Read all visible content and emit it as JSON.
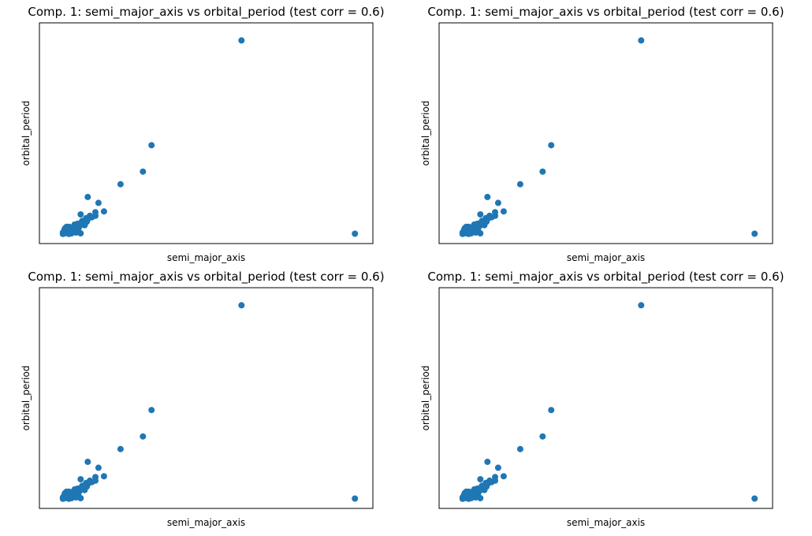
{
  "figure": {
    "background": "#ffffff",
    "marker_color": "#1f77b4"
  },
  "chart_data": [
    {
      "type": "scatter",
      "title": "Comp. 1: semi_major_axis vs orbital_period (test corr = 0.6)",
      "xlabel": "semi_major_axis",
      "ylabel": "orbital_period",
      "xticks": [],
      "yticks": [],
      "xlim": [
        0,
        100
      ],
      "ylim": [
        0,
        100
      ],
      "grid": false,
      "points": [
        {
          "x": 61.5,
          "y": 95.7
        },
        {
          "x": 32.2,
          "y": 44.1
        },
        {
          "x": 29.4,
          "y": 31.1
        },
        {
          "x": 98.5,
          "y": 0.5
        },
        {
          "x": 22.1,
          "y": 24.9
        },
        {
          "x": 11.4,
          "y": 18.6
        },
        {
          "x": 14.9,
          "y": 15.7
        },
        {
          "x": 16.7,
          "y": 11.5
        },
        {
          "x": 13.9,
          "y": 11.1
        },
        {
          "x": 9.1,
          "y": 10.0
        },
        {
          "x": 12.1,
          "y": 9.3
        },
        {
          "x": 13.9,
          "y": 9.3
        },
        {
          "x": 12.8,
          "y": 8.6
        },
        {
          "x": 10.9,
          "y": 8.2
        },
        {
          "x": 11.6,
          "y": 7.9
        },
        {
          "x": 9.6,
          "y": 6.8
        },
        {
          "x": 10.4,
          "y": 6.8
        },
        {
          "x": 11.1,
          "y": 6.4
        },
        {
          "x": 9.1,
          "y": 5.7
        },
        {
          "x": 10.1,
          "y": 5.4
        },
        {
          "x": 8.1,
          "y": 5.4
        },
        {
          "x": 7.1,
          "y": 5.0
        },
        {
          "x": 9.1,
          "y": 4.7
        },
        {
          "x": 10.4,
          "y": 4.7
        },
        {
          "x": 4.5,
          "y": 3.9
        },
        {
          "x": 5.3,
          "y": 3.9
        },
        {
          "x": 6.6,
          "y": 3.9
        },
        {
          "x": 8.6,
          "y": 3.9
        },
        {
          "x": 4.0,
          "y": 3.2
        },
        {
          "x": 5.8,
          "y": 3.2
        },
        {
          "x": 7.3,
          "y": 3.2
        },
        {
          "x": 3.8,
          "y": 2.5
        },
        {
          "x": 4.8,
          "y": 2.5
        },
        {
          "x": 6.3,
          "y": 2.5
        },
        {
          "x": 8.3,
          "y": 2.5
        },
        {
          "x": 3.8,
          "y": 1.8
        },
        {
          "x": 5.1,
          "y": 1.8
        },
        {
          "x": 6.8,
          "y": 1.8
        },
        {
          "x": 3.3,
          "y": 1.1
        },
        {
          "x": 4.3,
          "y": 1.1
        },
        {
          "x": 5.6,
          "y": 1.1
        },
        {
          "x": 7.6,
          "y": 1.1
        },
        {
          "x": 3.8,
          "y": 0.7
        },
        {
          "x": 4.8,
          "y": 0.7
        },
        {
          "x": 6.1,
          "y": 0.7
        },
        {
          "x": 9.1,
          "y": 0.7
        },
        {
          "x": 5.3,
          "y": 0.4
        },
        {
          "x": 3.3,
          "y": 0.4
        }
      ]
    },
    {
      "type": "scatter",
      "title": "Comp. 1: semi_major_axis vs orbital_period (test corr = 0.6)",
      "xlabel": "semi_major_axis",
      "ylabel": "orbital_period",
      "xticks": [],
      "yticks": [],
      "xlim": [
        0,
        100
      ],
      "ylim": [
        0,
        100
      ],
      "grid": false,
      "points": [
        {
          "x": 61.5,
          "y": 95.7
        },
        {
          "x": 32.2,
          "y": 44.1
        },
        {
          "x": 29.4,
          "y": 31.1
        },
        {
          "x": 98.5,
          "y": 0.5
        },
        {
          "x": 22.1,
          "y": 24.9
        },
        {
          "x": 11.4,
          "y": 18.6
        },
        {
          "x": 14.9,
          "y": 15.7
        },
        {
          "x": 16.7,
          "y": 11.5
        },
        {
          "x": 13.9,
          "y": 11.1
        },
        {
          "x": 9.1,
          "y": 10.0
        },
        {
          "x": 12.1,
          "y": 9.3
        },
        {
          "x": 13.9,
          "y": 9.3
        },
        {
          "x": 12.8,
          "y": 8.6
        },
        {
          "x": 10.9,
          "y": 8.2
        },
        {
          "x": 11.6,
          "y": 7.9
        },
        {
          "x": 9.6,
          "y": 6.8
        },
        {
          "x": 10.4,
          "y": 6.8
        },
        {
          "x": 11.1,
          "y": 6.4
        },
        {
          "x": 9.1,
          "y": 5.7
        },
        {
          "x": 10.1,
          "y": 5.4
        },
        {
          "x": 8.1,
          "y": 5.4
        },
        {
          "x": 7.1,
          "y": 5.0
        },
        {
          "x": 9.1,
          "y": 4.7
        },
        {
          "x": 10.4,
          "y": 4.7
        },
        {
          "x": 4.5,
          "y": 3.9
        },
        {
          "x": 5.3,
          "y": 3.9
        },
        {
          "x": 6.6,
          "y": 3.9
        },
        {
          "x": 8.6,
          "y": 3.9
        },
        {
          "x": 4.0,
          "y": 3.2
        },
        {
          "x": 5.8,
          "y": 3.2
        },
        {
          "x": 7.3,
          "y": 3.2
        },
        {
          "x": 3.8,
          "y": 2.5
        },
        {
          "x": 4.8,
          "y": 2.5
        },
        {
          "x": 6.3,
          "y": 2.5
        },
        {
          "x": 8.3,
          "y": 2.5
        },
        {
          "x": 3.8,
          "y": 1.8
        },
        {
          "x": 5.1,
          "y": 1.8
        },
        {
          "x": 6.8,
          "y": 1.8
        },
        {
          "x": 3.3,
          "y": 1.1
        },
        {
          "x": 4.3,
          "y": 1.1
        },
        {
          "x": 5.6,
          "y": 1.1
        },
        {
          "x": 7.6,
          "y": 1.1
        },
        {
          "x": 3.8,
          "y": 0.7
        },
        {
          "x": 4.8,
          "y": 0.7
        },
        {
          "x": 6.1,
          "y": 0.7
        },
        {
          "x": 9.1,
          "y": 0.7
        },
        {
          "x": 5.3,
          "y": 0.4
        },
        {
          "x": 3.3,
          "y": 0.4
        }
      ]
    },
    {
      "type": "scatter",
      "title": "Comp. 1: semi_major_axis vs orbital_period (test corr = 0.6)",
      "xlabel": "semi_major_axis",
      "ylabel": "orbital_period",
      "xticks": [],
      "yticks": [],
      "xlim": [
        0,
        100
      ],
      "ylim": [
        0,
        100
      ],
      "grid": false,
      "points": [
        {
          "x": 61.5,
          "y": 95.7
        },
        {
          "x": 32.2,
          "y": 44.1
        },
        {
          "x": 29.4,
          "y": 31.1
        },
        {
          "x": 98.5,
          "y": 0.5
        },
        {
          "x": 22.1,
          "y": 24.9
        },
        {
          "x": 11.4,
          "y": 18.6
        },
        {
          "x": 14.9,
          "y": 15.7
        },
        {
          "x": 16.7,
          "y": 11.5
        },
        {
          "x": 13.9,
          "y": 11.1
        },
        {
          "x": 9.1,
          "y": 10.0
        },
        {
          "x": 12.1,
          "y": 9.3
        },
        {
          "x": 13.9,
          "y": 9.3
        },
        {
          "x": 12.8,
          "y": 8.6
        },
        {
          "x": 10.9,
          "y": 8.2
        },
        {
          "x": 11.6,
          "y": 7.9
        },
        {
          "x": 9.6,
          "y": 6.8
        },
        {
          "x": 10.4,
          "y": 6.8
        },
        {
          "x": 11.1,
          "y": 6.4
        },
        {
          "x": 9.1,
          "y": 5.7
        },
        {
          "x": 10.1,
          "y": 5.4
        },
        {
          "x": 8.1,
          "y": 5.4
        },
        {
          "x": 7.1,
          "y": 5.0
        },
        {
          "x": 9.1,
          "y": 4.7
        },
        {
          "x": 10.4,
          "y": 4.7
        },
        {
          "x": 4.5,
          "y": 3.9
        },
        {
          "x": 5.3,
          "y": 3.9
        },
        {
          "x": 6.6,
          "y": 3.9
        },
        {
          "x": 8.6,
          "y": 3.9
        },
        {
          "x": 4.0,
          "y": 3.2
        },
        {
          "x": 5.8,
          "y": 3.2
        },
        {
          "x": 7.3,
          "y": 3.2
        },
        {
          "x": 3.8,
          "y": 2.5
        },
        {
          "x": 4.8,
          "y": 2.5
        },
        {
          "x": 6.3,
          "y": 2.5
        },
        {
          "x": 8.3,
          "y": 2.5
        },
        {
          "x": 3.8,
          "y": 1.8
        },
        {
          "x": 5.1,
          "y": 1.8
        },
        {
          "x": 6.8,
          "y": 1.8
        },
        {
          "x": 3.3,
          "y": 1.1
        },
        {
          "x": 4.3,
          "y": 1.1
        },
        {
          "x": 5.6,
          "y": 1.1
        },
        {
          "x": 7.6,
          "y": 1.1
        },
        {
          "x": 3.8,
          "y": 0.7
        },
        {
          "x": 4.8,
          "y": 0.7
        },
        {
          "x": 6.1,
          "y": 0.7
        },
        {
          "x": 9.1,
          "y": 0.7
        },
        {
          "x": 5.3,
          "y": 0.4
        },
        {
          "x": 3.3,
          "y": 0.4
        }
      ]
    },
    {
      "type": "scatter",
      "title": "Comp. 1: semi_major_axis vs orbital_period (test corr = 0.6)",
      "xlabel": "semi_major_axis",
      "ylabel": "orbital_period",
      "xticks": [],
      "yticks": [],
      "xlim": [
        0,
        100
      ],
      "ylim": [
        0,
        100
      ],
      "grid": false,
      "points": [
        {
          "x": 61.5,
          "y": 95.7
        },
        {
          "x": 32.2,
          "y": 44.1
        },
        {
          "x": 29.4,
          "y": 31.1
        },
        {
          "x": 98.5,
          "y": 0.5
        },
        {
          "x": 22.1,
          "y": 24.9
        },
        {
          "x": 11.4,
          "y": 18.6
        },
        {
          "x": 14.9,
          "y": 15.7
        },
        {
          "x": 16.7,
          "y": 11.5
        },
        {
          "x": 13.9,
          "y": 11.1
        },
        {
          "x": 9.1,
          "y": 10.0
        },
        {
          "x": 12.1,
          "y": 9.3
        },
        {
          "x": 13.9,
          "y": 9.3
        },
        {
          "x": 12.8,
          "y": 8.6
        },
        {
          "x": 10.9,
          "y": 8.2
        },
        {
          "x": 11.6,
          "y": 7.9
        },
        {
          "x": 9.6,
          "y": 6.8
        },
        {
          "x": 10.4,
          "y": 6.8
        },
        {
          "x": 11.1,
          "y": 6.4
        },
        {
          "x": 9.1,
          "y": 5.7
        },
        {
          "x": 10.1,
          "y": 5.4
        },
        {
          "x": 8.1,
          "y": 5.4
        },
        {
          "x": 7.1,
          "y": 5.0
        },
        {
          "x": 9.1,
          "y": 4.7
        },
        {
          "x": 10.4,
          "y": 4.7
        },
        {
          "x": 4.5,
          "y": 3.9
        },
        {
          "x": 5.3,
          "y": 3.9
        },
        {
          "x": 6.6,
          "y": 3.9
        },
        {
          "x": 8.6,
          "y": 3.9
        },
        {
          "x": 4.0,
          "y": 3.2
        },
        {
          "x": 5.8,
          "y": 3.2
        },
        {
          "x": 7.3,
          "y": 3.2
        },
        {
          "x": 3.8,
          "y": 2.5
        },
        {
          "x": 4.8,
          "y": 2.5
        },
        {
          "x": 6.3,
          "y": 2.5
        },
        {
          "x": 8.3,
          "y": 2.5
        },
        {
          "x": 3.8,
          "y": 1.8
        },
        {
          "x": 5.1,
          "y": 1.8
        },
        {
          "x": 6.8,
          "y": 1.8
        },
        {
          "x": 3.3,
          "y": 1.1
        },
        {
          "x": 4.3,
          "y": 1.1
        },
        {
          "x": 5.6,
          "y": 1.1
        },
        {
          "x": 7.6,
          "y": 1.1
        },
        {
          "x": 3.8,
          "y": 0.7
        },
        {
          "x": 4.8,
          "y": 0.7
        },
        {
          "x": 6.1,
          "y": 0.7
        },
        {
          "x": 9.1,
          "y": 0.7
        },
        {
          "x": 5.3,
          "y": 0.4
        },
        {
          "x": 3.3,
          "y": 0.4
        }
      ]
    }
  ]
}
